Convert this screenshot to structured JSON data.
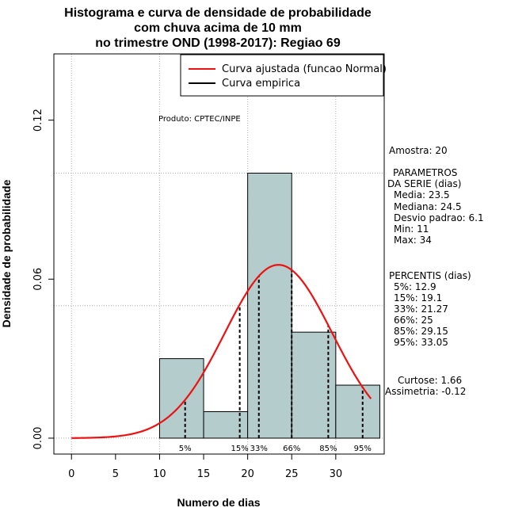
{
  "chart_data": {
    "type": "bar",
    "title_lines": [
      "Histograma e curva de densidade de probabilidade",
      "com chuva acima de 10 mm",
      "no trimestre OND (1998-2017): Regiao 69"
    ],
    "xlabel": "Numero de dias",
    "ylabel": "Densidade de probabilidade",
    "xlim": [
      -2,
      35.5
    ],
    "ylim": [
      -0.006,
      0.145
    ],
    "x_ticks": [
      0,
      5,
      10,
      15,
      20,
      25,
      30
    ],
    "y_ticks": [
      0.0,
      0.06,
      0.12
    ],
    "y_tick_labels": [
      "0.00",
      "0.06",
      "0.12"
    ],
    "x_gridlines": [
      0,
      10,
      20,
      30
    ],
    "y_gridlines": [
      0,
      0.05,
      0.1
    ],
    "histogram": [
      {
        "from": 10,
        "to": 15,
        "density": 0.03
      },
      {
        "from": 15,
        "to": 20,
        "density": 0.01
      },
      {
        "from": 20,
        "to": 25,
        "density": 0.1
      },
      {
        "from": 25,
        "to": 30,
        "density": 0.04
      },
      {
        "from": 30,
        "to": 35,
        "density": 0.02
      }
    ],
    "bar_color": "#b4cccc",
    "normal_curve": {
      "mean": 23.5,
      "sd": 6.1,
      "from": 0,
      "to": 34,
      "color": "#ee1111"
    },
    "percentile_lines": [
      {
        "label": "5%",
        "x": 12.9
      },
      {
        "label": "15%",
        "x": 19.1
      },
      {
        "label": "33%",
        "x": 21.27
      },
      {
        "label": "66%",
        "x": 25
      },
      {
        "label": "85%",
        "x": 29.15
      },
      {
        "label": "95%",
        "x": 33.05
      }
    ],
    "legend": [
      {
        "label": "Curva ajustada (funcao Normal)",
        "color": "#ee1111"
      },
      {
        "label": "Curva empirica",
        "color": "#000000"
      }
    ],
    "produto": "Produto: CPTEC/INPE"
  },
  "side_panel": {
    "amostra": "Amostra: 20",
    "param_lines": [
      "PARAMETROS",
      "DA SERIE (dias)",
      "Media: 23.5",
      "Mediana: 24.5",
      "Desvio padrao: 6.1",
      "Min: 11",
      "Max: 34"
    ],
    "percentis_lines": [
      "PERCENTIS (dias)",
      "5%: 12.9",
      "15%: 19.1",
      "33%: 21.27",
      "66%: 25",
      "85%: 29.15",
      "95%: 33.05"
    ],
    "curtose": "Curtose: 1.66",
    "assimetria": "Assimetria: -0.12"
  }
}
